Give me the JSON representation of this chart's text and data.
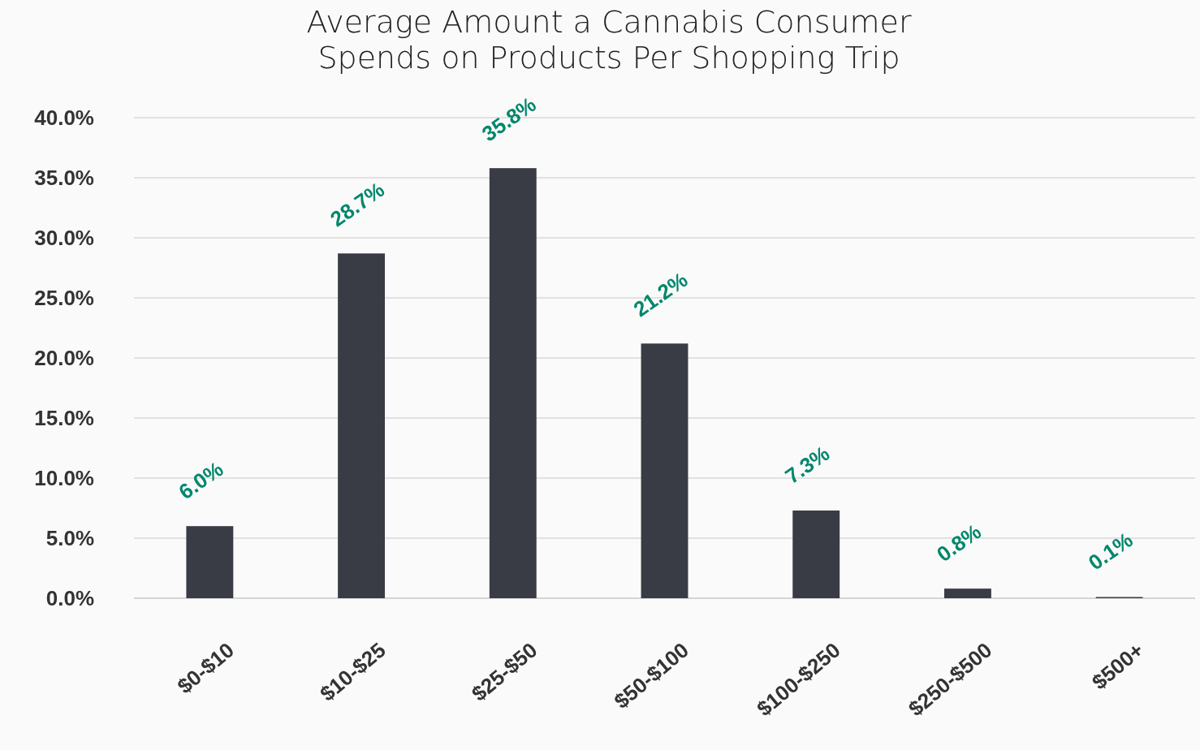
{
  "chart_data": {
    "type": "bar",
    "title": "Average Amount a Cannabis Consumer\nSpends on Products Per Shopping Trip",
    "categories": [
      "$0-$10",
      "$10-$25",
      "$25-$50",
      "$50-$100",
      "$100-$250",
      "$250-$500",
      "$500+"
    ],
    "values": [
      6.0,
      28.7,
      35.8,
      21.2,
      7.3,
      0.8,
      0.1
    ],
    "value_labels": [
      "6.0%",
      "28.7%",
      "35.8%",
      "21.2%",
      "7.3%",
      "0.8%",
      "0.1%"
    ],
    "color": "#393c45",
    "ylim": [
      0,
      40
    ],
    "yticks": [
      {
        "value": 0,
        "label": "0.0%"
      },
      {
        "value": 5,
        "label": "5.0%"
      },
      {
        "value": 10,
        "label": "10.0%"
      },
      {
        "value": 15,
        "label": "15.0%"
      },
      {
        "value": 20,
        "label": "20.0%"
      },
      {
        "value": 25,
        "label": "25.0%"
      },
      {
        "value": 30,
        "label": "30.0%"
      },
      {
        "value": 35,
        "label": "35.0%"
      },
      {
        "value": 40,
        "label": "40.0%"
      }
    ],
    "grid": "y"
  }
}
